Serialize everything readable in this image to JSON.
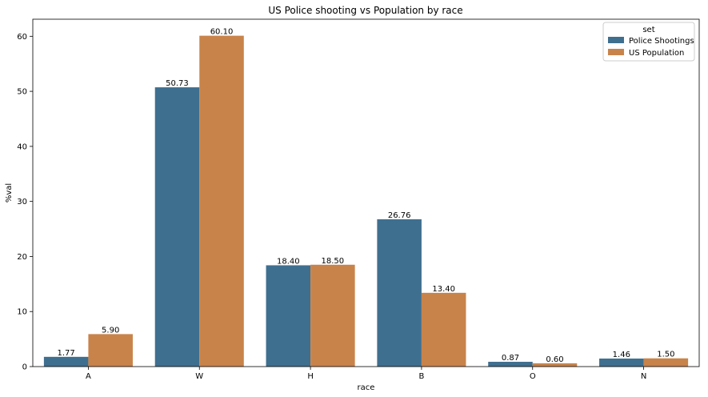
{
  "chart_data": {
    "type": "bar",
    "title": "US Police shooting vs Population by race",
    "xlabel": "race",
    "ylabel": "%val",
    "categories": [
      "A",
      "W",
      "H",
      "B",
      "O",
      "N"
    ],
    "series": [
      {
        "name": "Police Shootings",
        "color": "#3f6f8f",
        "values": [
          1.77,
          50.73,
          18.4,
          26.76,
          0.87,
          1.46
        ],
        "labels": [
          "1.77",
          "50.73",
          "18.40",
          "26.76",
          "0.87",
          "1.46"
        ]
      },
      {
        "name": "US Population",
        "color": "#c8834a",
        "values": [
          5.9,
          60.1,
          18.5,
          13.4,
          0.6,
          1.5
        ],
        "labels": [
          "5.90",
          "60.10",
          "18.50",
          "13.40",
          "0.60",
          "1.50"
        ]
      }
    ],
    "ylim": [
      0,
      63.1
    ],
    "yticks": [
      0,
      10,
      20,
      30,
      40,
      50,
      60
    ],
    "legend": {
      "title": "set",
      "position": "top-right"
    },
    "grid": false
  }
}
